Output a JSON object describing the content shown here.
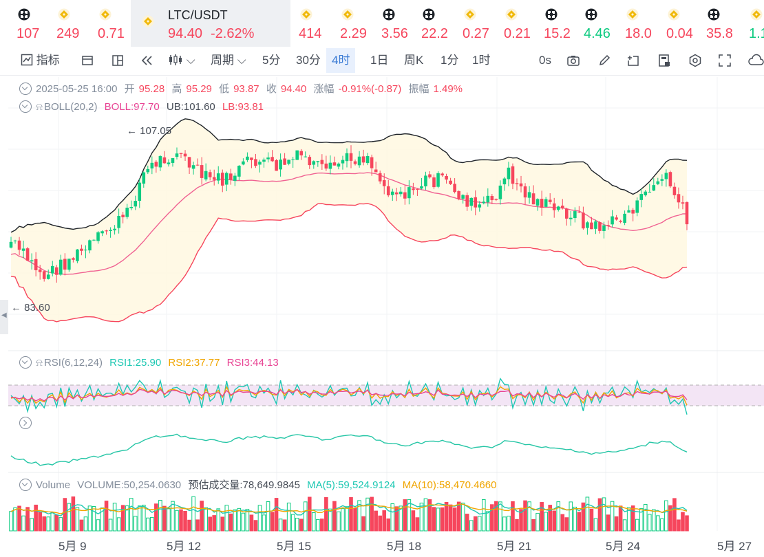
{
  "tickers": [
    {
      "price": "107",
      "icon": "binance-x-icon",
      "up": false
    },
    {
      "price": "249",
      "icon": "binance-diamond-icon",
      "up": false
    },
    {
      "price": "0.71",
      "icon": "binance-diamond-icon",
      "up": false
    },
    {
      "price": "414",
      "icon": "binance-diamond-icon",
      "up": false
    },
    {
      "price": "2.29",
      "icon": "binance-diamond-icon",
      "up": false
    },
    {
      "price": "3.56",
      "icon": "binance-x-icon",
      "up": false
    },
    {
      "price": "22.2",
      "icon": "binance-x-icon",
      "up": false
    },
    {
      "price": "0.27",
      "icon": "binance-diamond-icon",
      "up": false
    },
    {
      "price": "0.21",
      "icon": "binance-diamond-icon",
      "up": false
    },
    {
      "price": "15.2",
      "icon": "binance-x-icon",
      "up": false
    },
    {
      "price": "4.46",
      "icon": "binance-x-icon",
      "up": true
    },
    {
      "price": "18.0",
      "icon": "binance-diamond-icon",
      "up": false
    },
    {
      "price": "0.04",
      "icon": "binance-diamond-icon",
      "up": false
    },
    {
      "price": "35.8",
      "icon": "binance-x-icon",
      "up": false
    },
    {
      "price": "1.1",
      "icon": "binance-diamond-icon",
      "up": true
    }
  ],
  "active_ticker": {
    "name": "LTC/USDT",
    "price": "94.40",
    "change": "-2.62%"
  },
  "toolbar": {
    "indicator": "指标",
    "period": "周期",
    "intervals": [
      "5分",
      "30分",
      "4时",
      "1日",
      "周K",
      "1分",
      "1时"
    ],
    "active_interval": "4时",
    "countdown": "0s"
  },
  "ohlc_legend": {
    "datetime": "2025-05-25 16:00",
    "open_label": "开",
    "open": "95.28",
    "high_label": "高",
    "high": "95.29",
    "low_label": "低",
    "low": "93.87",
    "close_label": "收",
    "close": "94.40",
    "change_label": "涨幅",
    "change": "-0.91%(-0.87)",
    "amplitude_label": "振幅",
    "amplitude": "1.49%"
  },
  "boll_legend": {
    "name": "BOLL(20,2)",
    "boll": "BOLL:97.70",
    "ub": "UB:101.60",
    "lb": "LB:93.81"
  },
  "rsi_legend": {
    "name": "RSI(6,12,24)",
    "rsi1": "RSI1:25.90",
    "rsi2": "RSI2:37.77",
    "rsi3": "RSI3:44.13"
  },
  "volume_legend": {
    "name": "Volume",
    "volume": "VOLUME:50,254.0630",
    "estimate": "预估成交量:78,649.9845",
    "ma5": "MA(5):59,524.9124",
    "ma10": "MA(10):58,470.4660"
  },
  "chart_data": {
    "type": "candlestick",
    "symbol": "LTC/USDT",
    "interval": "4h",
    "annotations": {
      "high": "107.05",
      "low": "83.60"
    },
    "x_ticks": [
      "5月 9",
      "5月 12",
      "5月 15",
      "5月 18",
      "5月 21",
      "5月 24",
      "5月 27"
    ],
    "colors": {
      "up": "#0ecb81",
      "down": "#f6465d",
      "boll_mid": "#f06292",
      "boll_upper": "#1e2329",
      "boll_lower": "#f6465d",
      "rsi1": "#1ec8b3",
      "rsi2": "#f0a500",
      "rsi3": "#e84393"
    }
  }
}
